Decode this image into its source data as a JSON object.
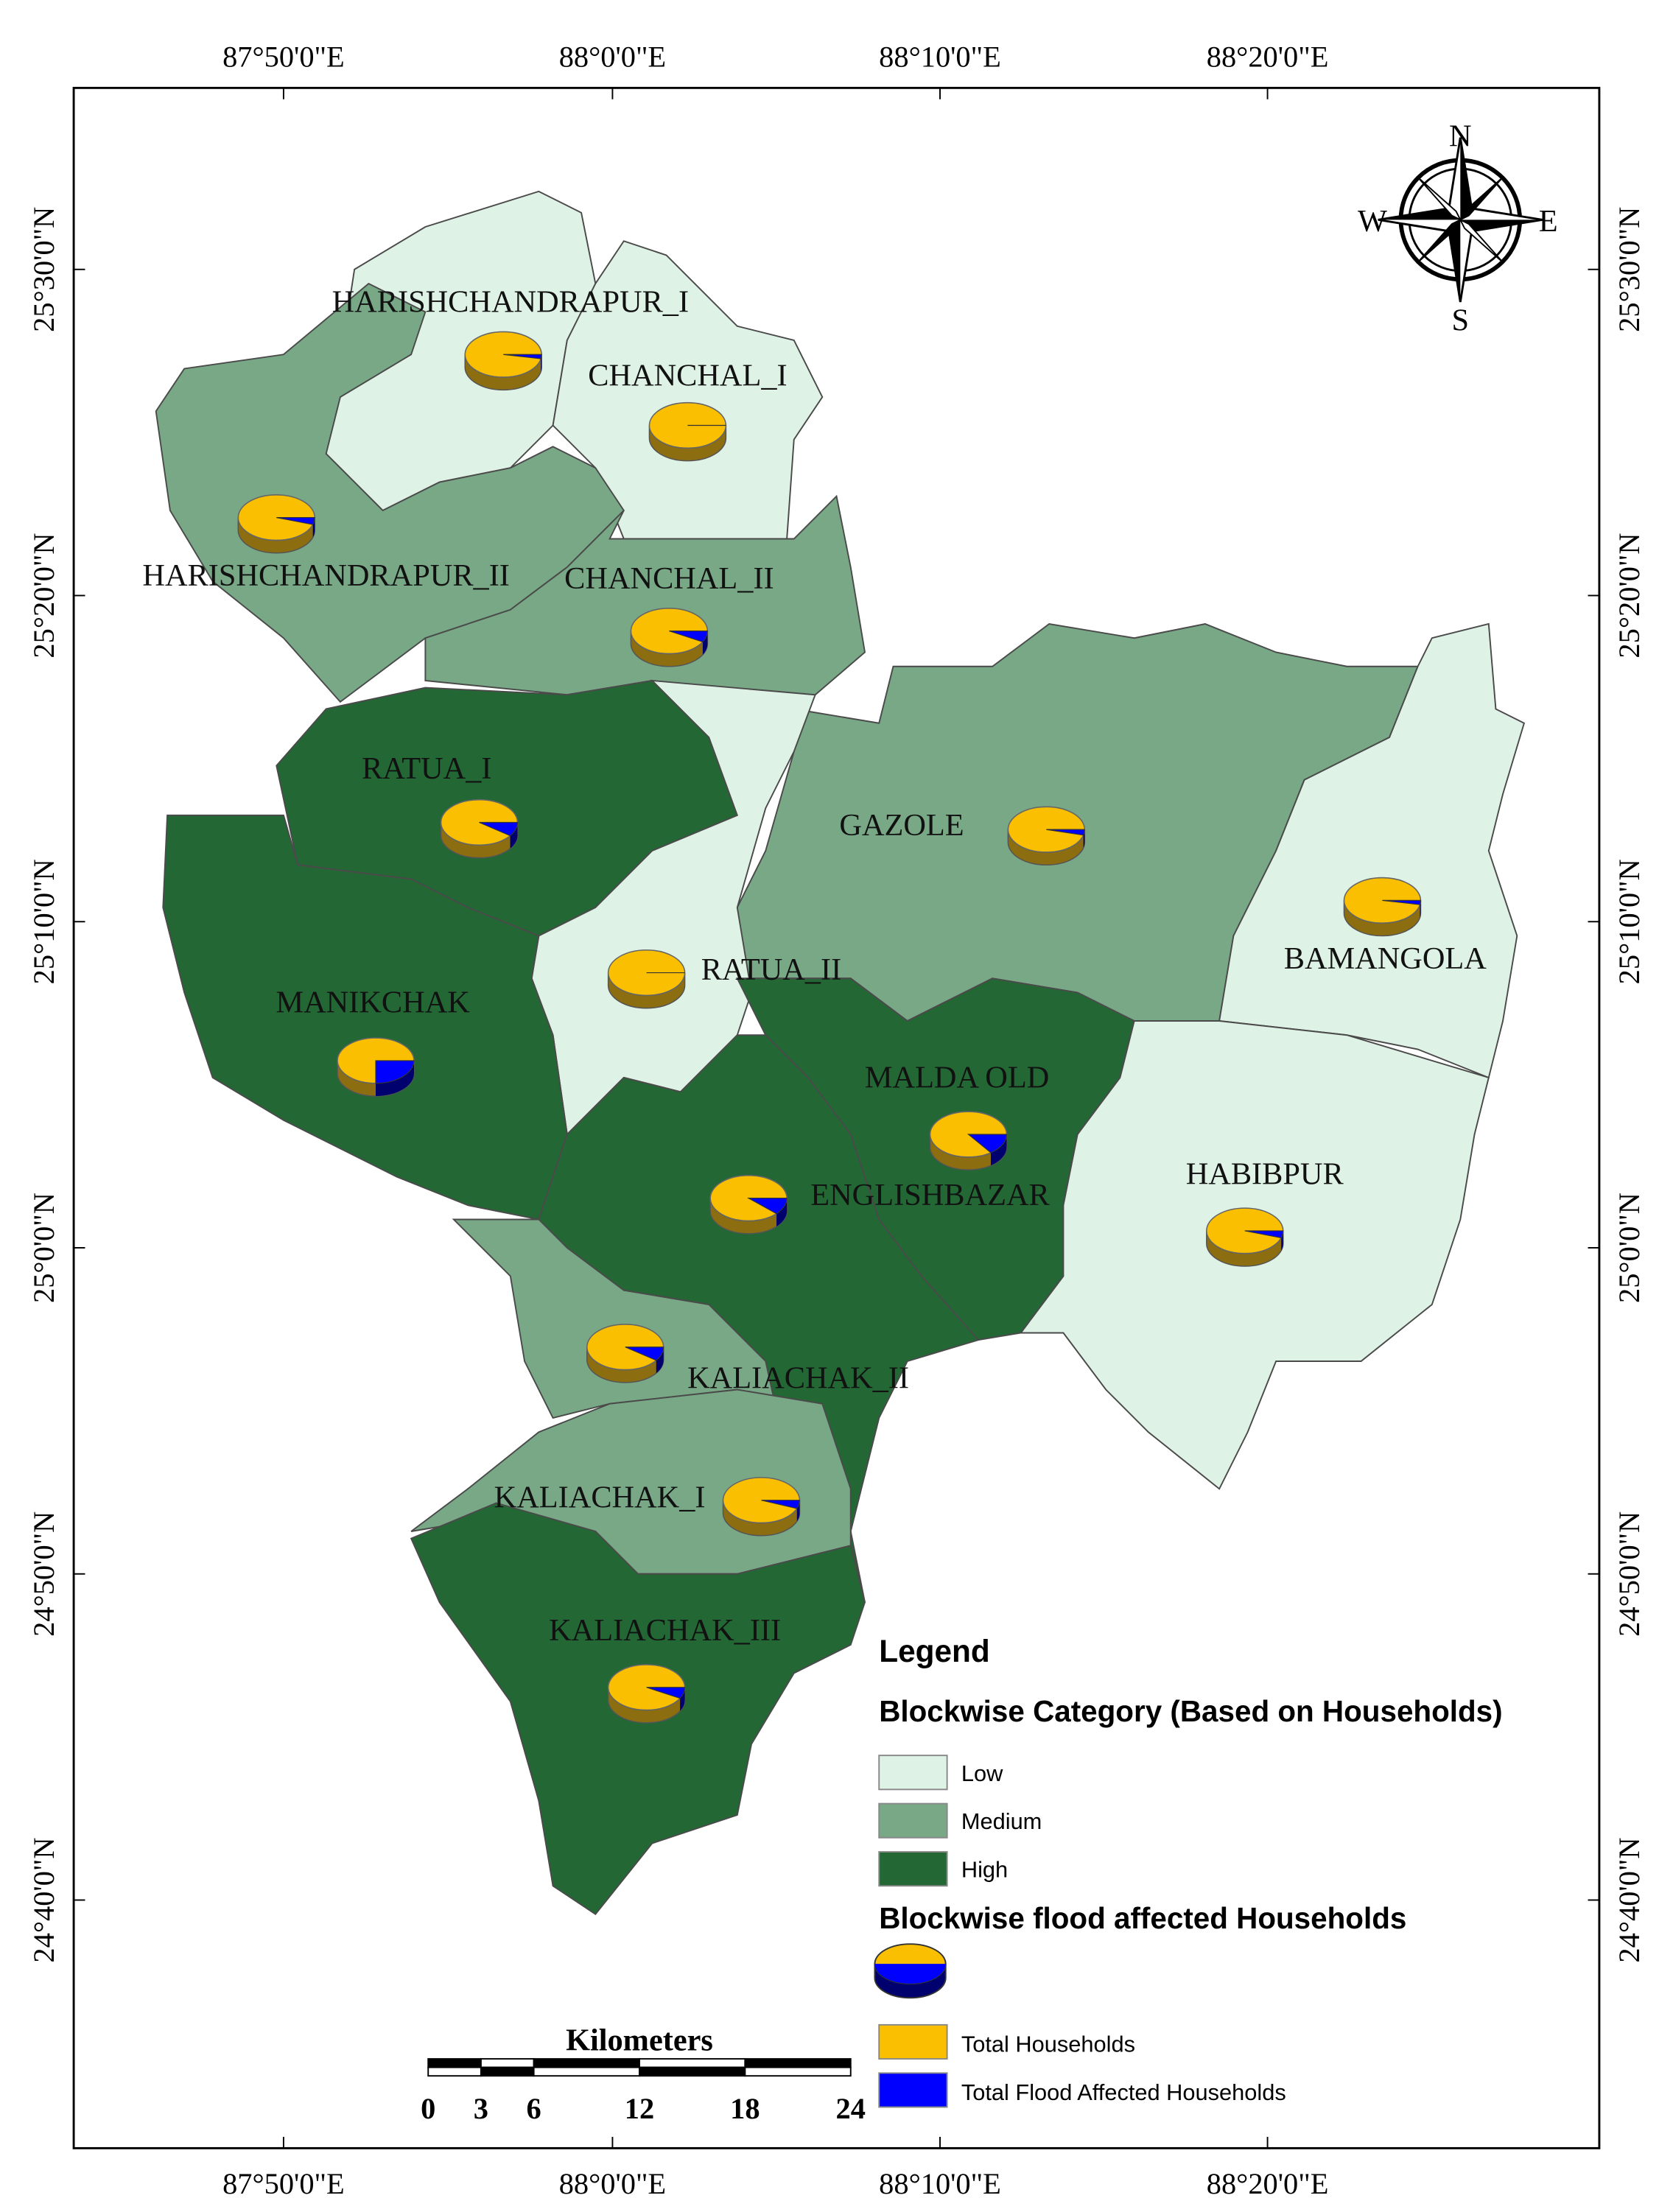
{
  "map": {
    "longitude_labels": [
      "87°50'0\"E",
      "88°0'0\"E",
      "88°10'0\"E",
      "88°20'0\"E"
    ],
    "latitude_labels": [
      "25°30'0\"N",
      "25°20'0\"N",
      "25°10'0\"N",
      "25°0'0\"N",
      "24°50'0\"N",
      "24°40'0\"N"
    ],
    "compass": {
      "n": "N",
      "s": "S",
      "e": "E",
      "w": "W"
    },
    "blocks": [
      {
        "name": "HARISHCHANDRAPUR_I",
        "class": "Low",
        "flood_share": 3
      },
      {
        "name": "CHANCHAL_I",
        "class": "Low",
        "flood_share": 0
      },
      {
        "name": "HARISHCHANDRAPUR_II",
        "class": "Medium",
        "flood_share": 5
      },
      {
        "name": "CHANCHAL_II",
        "class": "Medium",
        "flood_share": 8
      },
      {
        "name": "RATUA_I",
        "class": "High",
        "flood_share": 10
      },
      {
        "name": "GAZOLE",
        "class": "Medium",
        "flood_share": 4
      },
      {
        "name": "BAMANGOLA",
        "class": "Low",
        "flood_share": 3
      },
      {
        "name": "RATUA_II",
        "class": "Low",
        "flood_share": 0
      },
      {
        "name": "MANIKCHAK",
        "class": "High",
        "flood_share": 25
      },
      {
        "name": "MALDA OLD",
        "class": "High",
        "flood_share": 15
      },
      {
        "name": "ENGLISHBAZAR",
        "class": "High",
        "flood_share": 12
      },
      {
        "name": "HABIBPUR",
        "class": "Low",
        "flood_share": 5
      },
      {
        "name": "KALIACHAK_II",
        "class": "Medium",
        "flood_share": 10
      },
      {
        "name": "KALIACHAK_I",
        "class": "Medium",
        "flood_share": 6
      },
      {
        "name": "KALIACHAK_III",
        "class": "High",
        "flood_share": 8
      }
    ],
    "legend": {
      "title": "Legend",
      "category_title": "Blockwise Category (Based on Households)",
      "classes": [
        {
          "label": "Low",
          "color": "#dff2e6"
        },
        {
          "label": "Medium",
          "color": "#78a886"
        },
        {
          "label": "High",
          "color": "#236735"
        }
      ],
      "pie_title": "Blockwise flood affected Households",
      "pie_items": [
        {
          "label": "Total Households",
          "color": "#f9bf00"
        },
        {
          "label": "Total Flood Affected Households",
          "color": "#0000ff"
        }
      ]
    },
    "scale_bar": {
      "title": "Kilometers",
      "ticks": [
        0,
        3,
        6,
        12,
        18,
        24
      ]
    }
  }
}
